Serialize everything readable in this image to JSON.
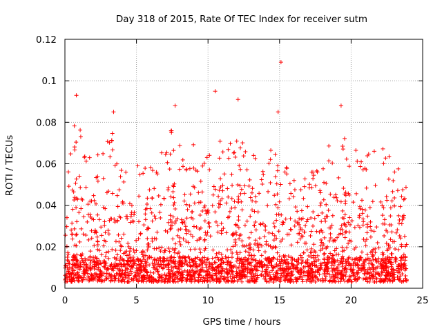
{
  "chart_data": {
    "type": "scatter",
    "title": "Day 318 of 2015, Rate Of TEC Index for receiver sutm",
    "xlabel": "GPS time / hours",
    "ylabel": "ROTI / TECUs",
    "xlim": [
      0,
      25
    ],
    "ylim": [
      0,
      0.12
    ],
    "xticks": [
      "0",
      "5",
      "10",
      "15",
      "20",
      "25"
    ],
    "yticks": [
      "0",
      "0.02",
      "0.04",
      "0.06",
      "0.08",
      "0.1",
      "0.12"
    ],
    "xtick_values": [
      0,
      5,
      10,
      15,
      20,
      25
    ],
    "ytick_values": [
      0,
      0.02,
      0.04,
      0.06,
      0.08,
      0.1,
      0.12
    ],
    "grid": true,
    "marker": "+",
    "color": "#ff0000",
    "x_data_range": [
      0,
      23.9
    ],
    "notable_points": [
      {
        "x": 15.1,
        "y": 0.109
      },
      {
        "x": 10.5,
        "y": 0.095
      },
      {
        "x": 0.8,
        "y": 0.093
      },
      {
        "x": 12.1,
        "y": 0.091
      },
      {
        "x": 19.3,
        "y": 0.088
      },
      {
        "x": 7.7,
        "y": 0.088
      },
      {
        "x": 3.4,
        "y": 0.085
      },
      {
        "x": 14.9,
        "y": 0.085
      }
    ],
    "envelope": [
      {
        "x": 0.0,
        "y": 0.05
      },
      {
        "x": 0.5,
        "y": 0.078
      },
      {
        "x": 1.0,
        "y": 0.08
      },
      {
        "x": 1.5,
        "y": 0.062
      },
      {
        "x": 2.0,
        "y": 0.072
      },
      {
        "x": 2.5,
        "y": 0.06
      },
      {
        "x": 3.0,
        "y": 0.078
      },
      {
        "x": 3.5,
        "y": 0.075
      },
      {
        "x": 4.0,
        "y": 0.058
      },
      {
        "x": 4.5,
        "y": 0.065
      },
      {
        "x": 5.0,
        "y": 0.062
      },
      {
        "x": 5.5,
        "y": 0.058
      },
      {
        "x": 6.0,
        "y": 0.072
      },
      {
        "x": 6.5,
        "y": 0.065
      },
      {
        "x": 7.0,
        "y": 0.07
      },
      {
        "x": 7.5,
        "y": 0.08
      },
      {
        "x": 8.0,
        "y": 0.07
      },
      {
        "x": 8.5,
        "y": 0.066
      },
      {
        "x": 9.0,
        "y": 0.072
      },
      {
        "x": 9.5,
        "y": 0.062
      },
      {
        "x": 10.0,
        "y": 0.07
      },
      {
        "x": 10.5,
        "y": 0.082
      },
      {
        "x": 11.0,
        "y": 0.078
      },
      {
        "x": 11.5,
        "y": 0.076
      },
      {
        "x": 12.0,
        "y": 0.082
      },
      {
        "x": 12.5,
        "y": 0.075
      },
      {
        "x": 13.0,
        "y": 0.068
      },
      {
        "x": 13.5,
        "y": 0.064
      },
      {
        "x": 14.0,
        "y": 0.066
      },
      {
        "x": 14.5,
        "y": 0.07
      },
      {
        "x": 15.0,
        "y": 0.074
      },
      {
        "x": 15.5,
        "y": 0.06
      },
      {
        "x": 16.0,
        "y": 0.052
      },
      {
        "x": 16.5,
        "y": 0.05
      },
      {
        "x": 17.0,
        "y": 0.055
      },
      {
        "x": 17.5,
        "y": 0.058
      },
      {
        "x": 18.0,
        "y": 0.066
      },
      {
        "x": 18.5,
        "y": 0.072
      },
      {
        "x": 19.0,
        "y": 0.07
      },
      {
        "x": 19.5,
        "y": 0.08
      },
      {
        "x": 20.0,
        "y": 0.072
      },
      {
        "x": 20.5,
        "y": 0.065
      },
      {
        "x": 21.0,
        "y": 0.064
      },
      {
        "x": 21.5,
        "y": 0.068
      },
      {
        "x": 22.0,
        "y": 0.066
      },
      {
        "x": 22.5,
        "y": 0.072
      },
      {
        "x": 23.0,
        "y": 0.064
      },
      {
        "x": 23.5,
        "y": 0.06
      },
      {
        "x": 23.9,
        "y": 0.05
      }
    ],
    "baseline_y_range": [
      0.003,
      0.015
    ]
  }
}
